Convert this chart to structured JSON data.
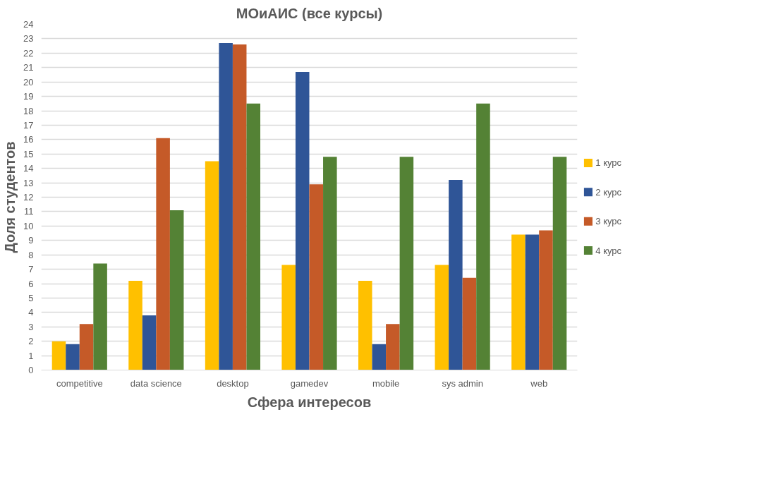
{
  "chart_data": {
    "type": "bar",
    "title": "МОиАИС (все курсы)",
    "xlabel": "Сфера интересов",
    "ylabel": "Доля студентов",
    "categories": [
      "competitive",
      "data science",
      "desktop",
      "gamedev",
      "mobile",
      "sys admin",
      "web"
    ],
    "series": [
      {
        "name": "1 курс",
        "color": "#ffc000",
        "values": [
          2.0,
          6.2,
          14.5,
          7.3,
          6.2,
          7.3,
          9.4
        ]
      },
      {
        "name": "2 курс",
        "color": "#2f5597",
        "values": [
          1.8,
          3.8,
          22.7,
          20.7,
          1.8,
          13.2,
          9.4
        ]
      },
      {
        "name": "3 курс",
        "color": "#c55a28",
        "values": [
          3.2,
          16.1,
          22.6,
          12.9,
          3.2,
          6.4,
          9.7
        ]
      },
      {
        "name": "4 курс",
        "color": "#548235",
        "values": [
          7.4,
          11.1,
          18.5,
          14.8,
          14.8,
          18.5,
          14.8
        ]
      }
    ],
    "ylim": [
      0,
      24
    ],
    "yticks": [
      0,
      1,
      2,
      3,
      4,
      5,
      6,
      7,
      8,
      9,
      10,
      11,
      12,
      13,
      14,
      15,
      16,
      17,
      18,
      19,
      20,
      21,
      22,
      23,
      24
    ],
    "grid": "y",
    "legend": "right"
  }
}
